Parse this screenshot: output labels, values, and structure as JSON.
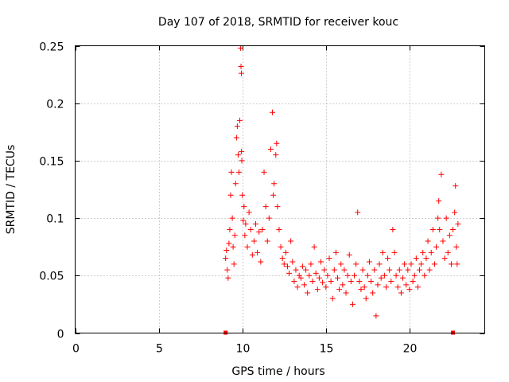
{
  "chart_data": {
    "type": "scatter",
    "title": "Day 107 of 2018, SRMTID for receiver kouc",
    "xlabel": "GPS time / hours",
    "ylabel": "SRMTID / TECUs",
    "xlim": [
      0,
      24.5
    ],
    "ylim": [
      0,
      0.25
    ],
    "xticks": [
      0,
      5,
      10,
      15,
      20
    ],
    "xtick_labels": [
      "0",
      "5",
      "10",
      "15",
      "20"
    ],
    "yticks": [
      0,
      0.05,
      0.1,
      0.15,
      0.2,
      0.25
    ],
    "ytick_labels": [
      "0",
      "0.05",
      "0.1",
      "0.15",
      "0.2",
      "0.25"
    ],
    "grid": true,
    "marker": "+",
    "series": [
      {
        "name": "SRMTID",
        "color": "#ff0000",
        "points": [
          [
            9.0,
            0.065
          ],
          [
            9.05,
            0.072
          ],
          [
            9.1,
            0.055
          ],
          [
            9.15,
            0.048
          ],
          [
            9.2,
            0.078
          ],
          [
            9.25,
            0.09
          ],
          [
            9.3,
            0.12
          ],
          [
            9.35,
            0.14
          ],
          [
            9.4,
            0.1
          ],
          [
            9.45,
            0.075
          ],
          [
            9.5,
            0.06
          ],
          [
            9.55,
            0.085
          ],
          [
            9.6,
            0.13
          ],
          [
            9.65,
            0.17
          ],
          [
            9.7,
            0.18
          ],
          [
            9.75,
            0.155
          ],
          [
            9.8,
            0.14
          ],
          [
            9.85,
            0.185
          ],
          [
            9.9,
            0.248
          ],
          [
            9.92,
            0.232
          ],
          [
            9.94,
            0.226
          ],
          [
            9.95,
            0.158
          ],
          [
            9.97,
            0.15
          ],
          [
            10.0,
            0.12
          ],
          [
            10.05,
            0.098
          ],
          [
            10.1,
            0.11
          ],
          [
            10.15,
            0.085
          ],
          [
            10.2,
            0.095
          ],
          [
            10.3,
            0.075
          ],
          [
            10.4,
            0.105
          ],
          [
            10.5,
            0.09
          ],
          [
            10.6,
            0.068
          ],
          [
            10.7,
            0.08
          ],
          [
            10.8,
            0.095
          ],
          [
            10.9,
            0.07
          ],
          [
            11.0,
            0.088
          ],
          [
            11.1,
            0.062
          ],
          [
            11.2,
            0.09
          ],
          [
            11.3,
            0.14
          ],
          [
            11.4,
            0.11
          ],
          [
            11.5,
            0.08
          ],
          [
            11.6,
            0.1
          ],
          [
            11.7,
            0.16
          ],
          [
            11.8,
            0.192
          ],
          [
            11.85,
            0.12
          ],
          [
            11.9,
            0.13
          ],
          [
            12.0,
            0.155
          ],
          [
            12.05,
            0.165
          ],
          [
            12.1,
            0.11
          ],
          [
            12.2,
            0.09
          ],
          [
            12.3,
            0.075
          ],
          [
            12.4,
            0.065
          ],
          [
            12.5,
            0.06
          ],
          [
            12.6,
            0.07
          ],
          [
            12.7,
            0.058
          ],
          [
            12.8,
            0.052
          ],
          [
            12.9,
            0.08
          ],
          [
            13.0,
            0.062
          ],
          [
            13.1,
            0.045
          ],
          [
            13.2,
            0.055
          ],
          [
            13.3,
            0.04
          ],
          [
            13.4,
            0.05
          ],
          [
            13.5,
            0.048
          ],
          [
            13.6,
            0.058
          ],
          [
            13.7,
            0.042
          ],
          [
            13.8,
            0.055
          ],
          [
            13.9,
            0.035
          ],
          [
            14.0,
            0.05
          ],
          [
            14.1,
            0.06
          ],
          [
            14.2,
            0.045
          ],
          [
            14.3,
            0.075
          ],
          [
            14.4,
            0.052
          ],
          [
            14.5,
            0.038
          ],
          [
            14.6,
            0.048
          ],
          [
            14.7,
            0.062
          ],
          [
            14.8,
            0.044
          ],
          [
            14.9,
            0.055
          ],
          [
            15.0,
            0.04
          ],
          [
            15.1,
            0.05
          ],
          [
            15.2,
            0.065
          ],
          [
            15.3,
            0.045
          ],
          [
            15.4,
            0.03
          ],
          [
            15.5,
            0.055
          ],
          [
            15.6,
            0.07
          ],
          [
            15.7,
            0.048
          ],
          [
            15.8,
            0.038
          ],
          [
            15.9,
            0.06
          ],
          [
            16.0,
            0.042
          ],
          [
            16.1,
            0.055
          ],
          [
            16.2,
            0.035
          ],
          [
            16.3,
            0.05
          ],
          [
            16.4,
            0.068
          ],
          [
            16.5,
            0.045
          ],
          [
            16.6,
            0.025
          ],
          [
            16.7,
            0.05
          ],
          [
            16.8,
            0.06
          ],
          [
            16.9,
            0.105
          ],
          [
            17.0,
            0.045
          ],
          [
            17.1,
            0.038
          ],
          [
            17.2,
            0.055
          ],
          [
            17.3,
            0.04
          ],
          [
            17.4,
            0.03
          ],
          [
            17.5,
            0.05
          ],
          [
            17.6,
            0.062
          ],
          [
            17.7,
            0.045
          ],
          [
            17.8,
            0.035
          ],
          [
            17.9,
            0.055
          ],
          [
            18.0,
            0.015
          ],
          [
            18.1,
            0.042
          ],
          [
            18.2,
            0.06
          ],
          [
            18.3,
            0.048
          ],
          [
            18.4,
            0.07
          ],
          [
            18.5,
            0.05
          ],
          [
            18.6,
            0.04
          ],
          [
            18.7,
            0.065
          ],
          [
            18.8,
            0.055
          ],
          [
            18.9,
            0.045
          ],
          [
            19.0,
            0.09
          ],
          [
            19.1,
            0.07
          ],
          [
            19.2,
            0.05
          ],
          [
            19.3,
            0.04
          ],
          [
            19.4,
            0.055
          ],
          [
            19.5,
            0.035
          ],
          [
            19.6,
            0.048
          ],
          [
            19.7,
            0.06
          ],
          [
            19.8,
            0.042
          ],
          [
            19.9,
            0.055
          ],
          [
            20.0,
            0.038
          ],
          [
            20.1,
            0.06
          ],
          [
            20.2,
            0.045
          ],
          [
            20.3,
            0.05
          ],
          [
            20.4,
            0.065
          ],
          [
            20.5,
            0.04
          ],
          [
            20.6,
            0.055
          ],
          [
            20.7,
            0.06
          ],
          [
            20.8,
            0.07
          ],
          [
            20.9,
            0.05
          ],
          [
            21.0,
            0.065
          ],
          [
            21.1,
            0.08
          ],
          [
            21.2,
            0.055
          ],
          [
            21.3,
            0.07
          ],
          [
            21.4,
            0.09
          ],
          [
            21.5,
            0.06
          ],
          [
            21.6,
            0.075
          ],
          [
            21.7,
            0.1
          ],
          [
            21.75,
            0.115
          ],
          [
            21.8,
            0.09
          ],
          [
            21.9,
            0.138
          ],
          [
            22.0,
            0.08
          ],
          [
            22.1,
            0.065
          ],
          [
            22.2,
            0.1
          ],
          [
            22.3,
            0.07
          ],
          [
            22.4,
            0.085
          ],
          [
            22.5,
            0.06
          ],
          [
            22.6,
            0.09
          ],
          [
            22.7,
            0.105
          ],
          [
            22.75,
            0.128
          ],
          [
            22.8,
            0.075
          ],
          [
            22.85,
            0.06
          ],
          [
            22.9,
            0.095
          ]
        ]
      },
      {
        "name": "zero-level markers",
        "color": "#ff0000",
        "marker": "square",
        "points": [
          [
            9.0,
            0
          ],
          [
            22.6,
            0
          ]
        ]
      }
    ]
  }
}
